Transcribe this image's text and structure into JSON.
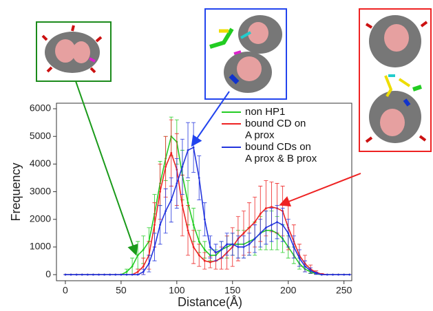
{
  "chart_data": {
    "type": "line",
    "xlabel": "Distance(Å)",
    "ylabel": "Frequency",
    "x": [
      0,
      5,
      10,
      15,
      20,
      25,
      30,
      35,
      40,
      45,
      50,
      55,
      60,
      65,
      70,
      75,
      80,
      85,
      90,
      95,
      100,
      105,
      110,
      115,
      120,
      125,
      130,
      135,
      140,
      145,
      150,
      155,
      160,
      165,
      170,
      175,
      180,
      185,
      190,
      195,
      200,
      205,
      210,
      215,
      220,
      225,
      230,
      235,
      240,
      245,
      250,
      255
    ],
    "xlim": [
      -8,
      257
    ],
    "xticks": [
      0,
      50,
      100,
      150,
      200,
      250
    ],
    "ylim": [
      -220,
      6200
    ],
    "yticks": [
      0,
      1000,
      2000,
      3000,
      4000,
      5000,
      6000
    ],
    "series": [
      {
        "name": "non HP1",
        "color": "#22cc22",
        "values": [
          0,
          0,
          0,
          0,
          0,
          0,
          0,
          0,
          0,
          0,
          0,
          100,
          300,
          700,
          900,
          1200,
          2200,
          3300,
          4200,
          5000,
          4800,
          3600,
          2600,
          1800,
          1200,
          900,
          700,
          700,
          900,
          1000,
          1100,
          1100,
          1100,
          1200,
          1300,
          1500,
          1600,
          1600,
          1500,
          1300,
          1000,
          700,
          400,
          200,
          100,
          30,
          0,
          0,
          0,
          0,
          0,
          0
        ],
        "errors": [
          0,
          0,
          0,
          0,
          0,
          0,
          0,
          0,
          0,
          0,
          0,
          100,
          300,
          500,
          500,
          500,
          700,
          800,
          800,
          700,
          800,
          900,
          800,
          600,
          400,
          300,
          200,
          200,
          300,
          400,
          400,
          500,
          500,
          500,
          600,
          600,
          700,
          700,
          600,
          500,
          400,
          300,
          200,
          100,
          60,
          20,
          0,
          0,
          0,
          0,
          0,
          0
        ]
      },
      {
        "name": "bound CD on\nA prox",
        "color": "#ee2222",
        "values": [
          0,
          0,
          0,
          0,
          0,
          0,
          0,
          0,
          0,
          0,
          0,
          0,
          0,
          100,
          300,
          700,
          1800,
          3000,
          3900,
          4400,
          3800,
          2500,
          1600,
          1000,
          700,
          500,
          450,
          500,
          600,
          800,
          1000,
          1300,
          1500,
          1700,
          1900,
          2200,
          2400,
          2450,
          2400,
          2300,
          1700,
          1200,
          700,
          400,
          200,
          80,
          20,
          0,
          0,
          0,
          0,
          0
        ],
        "errors": [
          0,
          0,
          0,
          0,
          0,
          0,
          0,
          0,
          0,
          0,
          0,
          0,
          0,
          100,
          300,
          500,
          800,
          1000,
          1100,
          1200,
          1300,
          1100,
          900,
          600,
          400,
          300,
          200,
          300,
          400,
          600,
          700,
          800,
          800,
          900,
          900,
          1000,
          1000,
          900,
          900,
          900,
          800,
          600,
          400,
          300,
          150,
          60,
          20,
          0,
          0,
          0,
          0,
          0
        ]
      },
      {
        "name": "bound CDs on\nA prox & B prox",
        "color": "#2233dd",
        "values": [
          0,
          0,
          0,
          0,
          0,
          0,
          0,
          0,
          0,
          0,
          0,
          0,
          0,
          0,
          100,
          400,
          1000,
          1800,
          2300,
          2700,
          3300,
          3900,
          4500,
          4600,
          3500,
          2000,
          1000,
          800,
          900,
          1100,
          1100,
          1000,
          1000,
          1100,
          1300,
          1500,
          1700,
          1800,
          1900,
          1800,
          1500,
          1000,
          600,
          300,
          150,
          50,
          0,
          0,
          0,
          0,
          0,
          0
        ],
        "errors": [
          0,
          0,
          0,
          0,
          0,
          0,
          0,
          0,
          0,
          0,
          0,
          0,
          0,
          0,
          100,
          300,
          500,
          700,
          800,
          800,
          900,
          1000,
          1000,
          900,
          800,
          600,
          400,
          300,
          300,
          400,
          400,
          400,
          400,
          400,
          500,
          500,
          600,
          600,
          600,
          600,
          500,
          400,
          300,
          200,
          100,
          40,
          0,
          0,
          0,
          0,
          0,
          0
        ]
      }
    ]
  }
}
